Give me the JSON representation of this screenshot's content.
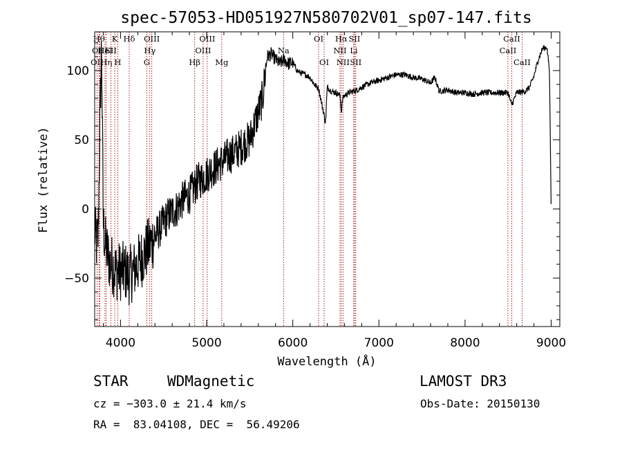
{
  "chart_data": {
    "type": "line",
    "title": "spec-57053-HD051927N580702V01_sp07-147.fits",
    "xlabel": "Wavelength (Å)",
    "ylabel": "Flux (relative)",
    "xlim": [
      3700,
      9100
    ],
    "ylim": [
      -85,
      128
    ],
    "xticks": [
      4000,
      5000,
      6000,
      7000,
      8000,
      9000
    ],
    "xtick_labels": [
      "4000",
      "5000",
      "6000",
      "7000",
      "8000",
      "9000"
    ],
    "yticks": [
      -50,
      0,
      50,
      100
    ],
    "ytick_labels": [
      "−50",
      "0",
      "50",
      "100"
    ],
    "grid": false,
    "series": [
      {
        "name": "flux",
        "x": [
          3700,
          3720,
          3740,
          3760,
          3780,
          3800,
          3820,
          3840,
          3860,
          3880,
          3900,
          3950,
          4000,
          4050,
          4100,
          4150,
          4200,
          4250,
          4300,
          4350,
          4400,
          4450,
          4500,
          4550,
          4600,
          4650,
          4700,
          4750,
          4800,
          4850,
          4900,
          4950,
          5000,
          5050,
          5100,
          5150,
          5200,
          5250,
          5300,
          5350,
          5400,
          5450,
          5500,
          5550,
          5600,
          5650,
          5700,
          5750,
          5800,
          5850,
          5900,
          5950,
          6000,
          6050,
          6100,
          6150,
          6200,
          6250,
          6300,
          6350,
          6380,
          6400,
          6450,
          6500,
          6550,
          6563,
          6580,
          6600,
          6650,
          6700,
          6750,
          6800,
          6900,
          7000,
          7100,
          7200,
          7300,
          7400,
          7500,
          7600,
          7650,
          7700,
          7800,
          7900,
          8000,
          8100,
          8200,
          8300,
          8400,
          8500,
          8540,
          8600,
          8700,
          8750,
          8800,
          8850,
          8900,
          8950,
          8980,
          9000
        ],
        "y": [
          -15,
          -25,
          -20,
          60,
          120,
          -10,
          -25,
          -30,
          -35,
          -40,
          -40,
          -45,
          -45,
          -45,
          -48,
          -45,
          -40,
          -35,
          -30,
          -25,
          -20,
          -15,
          -10,
          -5,
          -2,
          0,
          5,
          8,
          10,
          15,
          20,
          22,
          25,
          28,
          30,
          33,
          35,
          38,
          40,
          42,
          45,
          48,
          50,
          60,
          70,
          80,
          110,
          112,
          108,
          105,
          108,
          105,
          106,
          100,
          98,
          97,
          95,
          90,
          87,
          72,
          62,
          88,
          85,
          84,
          82,
          70,
          80,
          82,
          84,
          85,
          86,
          88,
          91,
          93,
          95,
          97,
          97,
          95,
          94,
          91,
          95,
          85,
          86,
          84,
          84,
          83,
          84,
          84,
          84,
          84,
          75,
          84,
          85,
          88,
          96,
          108,
          116,
          117,
          100,
          0
        ]
      }
    ],
    "line_markers": [
      {
        "label": "OII",
        "wavelength": 3727,
        "row": 2
      },
      {
        "label": "Hθ",
        "wavelength": 3750,
        "row": 0
      },
      {
        "label": "Hη",
        "wavelength": 3835,
        "row": 2
      },
      {
        "label": "OIII",
        "wavelength": 3760,
        "row": 1
      },
      {
        "label": "HeI",
        "wavelength": 3820,
        "row": 1
      },
      {
        "label": "SII",
        "wavelength": 3888,
        "row": 1
      },
      {
        "label": "K",
        "wavelength": 3933,
        "row": 0
      },
      {
        "label": "H",
        "wavelength": 3968,
        "row": 2
      },
      {
        "label": "Hδ",
        "wavelength": 4101,
        "row": 0
      },
      {
        "label": "G",
        "wavelength": 4305,
        "row": 2
      },
      {
        "label": "Hγ",
        "wavelength": 4340,
        "row": 1
      },
      {
        "label": "OIII",
        "wavelength": 4363,
        "row": 0
      },
      {
        "label": "Hβ",
        "wavelength": 4861,
        "row": 2
      },
      {
        "label": "OIII",
        "wavelength": 4959,
        "row": 1
      },
      {
        "label": "OIII",
        "wavelength": 5007,
        "row": 0
      },
      {
        "label": "Mg",
        "wavelength": 5175,
        "row": 2
      },
      {
        "label": "Na",
        "wavelength": 5893,
        "row": 1
      },
      {
        "label": "OI",
        "wavelength": 6300,
        "row": 0
      },
      {
        "label": "OI",
        "wavelength": 6364,
        "row": 2
      },
      {
        "label": "NII",
        "wavelength": 6548,
        "row": 1
      },
      {
        "label": "Hα",
        "wavelength": 6563,
        "row": 0
      },
      {
        "label": "NII",
        "wavelength": 6583,
        "row": 2
      },
      {
        "label": "Li",
        "wavelength": 6708,
        "row": 1
      },
      {
        "label": "SII",
        "wavelength": 6716,
        "row": 0
      },
      {
        "label": "SII",
        "wavelength": 6731,
        "row": 2
      },
      {
        "label": "CaII",
        "wavelength": 8498,
        "row": 1
      },
      {
        "label": "CaII",
        "wavelength": 8542,
        "row": 0
      },
      {
        "label": "CaII",
        "wavelength": 8662,
        "row": 2
      }
    ]
  },
  "info": {
    "class": "STAR",
    "subclass": "WDMagnetic",
    "survey": "LAMOST DR3",
    "cz": "cz = −303.0 ± 21.4 km/s",
    "obs_date": "Obs-Date: 20150130",
    "radec": "RA =  83.04108, DEC =  56.49206"
  },
  "colors": {
    "line_marker": "#a00000",
    "spectrum": "#000000",
    "axes": "#000000"
  }
}
